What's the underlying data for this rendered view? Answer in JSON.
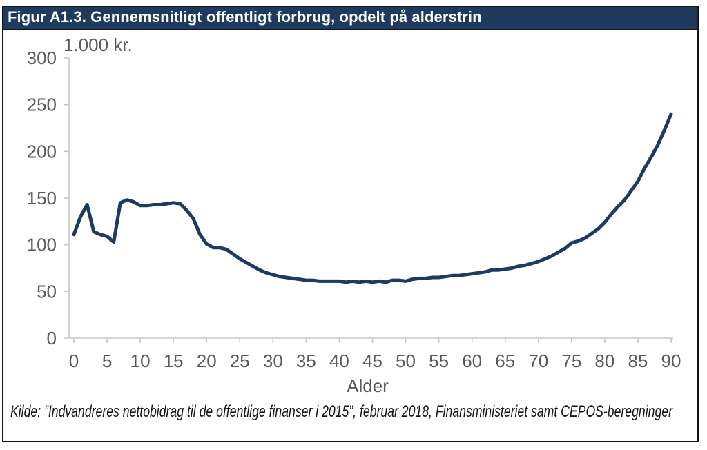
{
  "title": "Figur A1.3. Gennemsnitligt offentligt forbrug, opdelt på alderstrin",
  "source_note": "Kilde: ”Indvandreres nettobidrag til de offentlige finanser i 2015”, februar 2018, Finansministeriet samt CEPOS-beregninger",
  "colors": {
    "brand_navy": "#1e3a5f",
    "line": "#1d3a63",
    "axis": "#c8c8c8",
    "tick_label": "#595959",
    "border": "#141414",
    "background": "#ffffff",
    "title_text": "#ffffff"
  },
  "chart_data": {
    "type": "line",
    "title": "Figur A1.3. Gennemsnitligt offentligt forbrug, opdelt på alderstrin",
    "unit_label": "1.000 kr.",
    "xlabel": "Alder",
    "ylabel": "1.000 kr.",
    "xlim": [
      0,
      90
    ],
    "ylim": [
      0,
      300
    ],
    "x_ticks": [
      0,
      5,
      10,
      15,
      20,
      25,
      30,
      35,
      40,
      45,
      50,
      55,
      60,
      65,
      70,
      75,
      80,
      85,
      90
    ],
    "y_ticks": [
      0,
      50,
      100,
      150,
      200,
      250,
      300
    ],
    "grid": false,
    "legend_position": "none",
    "series": [
      {
        "name": "Gennemsnitligt offentligt forbrug",
        "points": [
          [
            0,
            111
          ],
          [
            1,
            130
          ],
          [
            2,
            143
          ],
          [
            3,
            114
          ],
          [
            4,
            111
          ],
          [
            5,
            109
          ],
          [
            6,
            103
          ],
          [
            7,
            145
          ],
          [
            8,
            148
          ],
          [
            9,
            146
          ],
          [
            10,
            142
          ],
          [
            11,
            142
          ],
          [
            12,
            143
          ],
          [
            13,
            143
          ],
          [
            14,
            144
          ],
          [
            15,
            145
          ],
          [
            16,
            144
          ],
          [
            17,
            137
          ],
          [
            18,
            128
          ],
          [
            19,
            111
          ],
          [
            20,
            101
          ],
          [
            21,
            97
          ],
          [
            22,
            97
          ],
          [
            23,
            95
          ],
          [
            24,
            90
          ],
          [
            25,
            85
          ],
          [
            26,
            81
          ],
          [
            27,
            77
          ],
          [
            28,
            73
          ],
          [
            29,
            70
          ],
          [
            30,
            68
          ],
          [
            31,
            66
          ],
          [
            32,
            65
          ],
          [
            33,
            64
          ],
          [
            34,
            63
          ],
          [
            35,
            62
          ],
          [
            36,
            62
          ],
          [
            37,
            61
          ],
          [
            38,
            61
          ],
          [
            39,
            61
          ],
          [
            40,
            61
          ],
          [
            41,
            60
          ],
          [
            42,
            61
          ],
          [
            43,
            60
          ],
          [
            44,
            61
          ],
          [
            45,
            60
          ],
          [
            46,
            61
          ],
          [
            47,
            60
          ],
          [
            48,
            62
          ],
          [
            49,
            62
          ],
          [
            50,
            61
          ],
          [
            51,
            63
          ],
          [
            52,
            64
          ],
          [
            53,
            64
          ],
          [
            54,
            65
          ],
          [
            55,
            65
          ],
          [
            56,
            66
          ],
          [
            57,
            67
          ],
          [
            58,
            67
          ],
          [
            59,
            68
          ],
          [
            60,
            69
          ],
          [
            61,
            70
          ],
          [
            62,
            71
          ],
          [
            63,
            73
          ],
          [
            64,
            73
          ],
          [
            65,
            74
          ],
          [
            66,
            75
          ],
          [
            67,
            77
          ],
          [
            68,
            78
          ],
          [
            69,
            80
          ],
          [
            70,
            82
          ],
          [
            71,
            85
          ],
          [
            72,
            88
          ],
          [
            73,
            92
          ],
          [
            74,
            96
          ],
          [
            75,
            102
          ],
          [
            76,
            104
          ],
          [
            77,
            107
          ],
          [
            78,
            112
          ],
          [
            79,
            117
          ],
          [
            80,
            124
          ],
          [
            81,
            133
          ],
          [
            82,
            141
          ],
          [
            83,
            148
          ],
          [
            84,
            158
          ],
          [
            85,
            168
          ],
          [
            86,
            182
          ],
          [
            87,
            194
          ],
          [
            88,
            207
          ],
          [
            89,
            223
          ],
          [
            90,
            240
          ]
        ]
      }
    ]
  }
}
